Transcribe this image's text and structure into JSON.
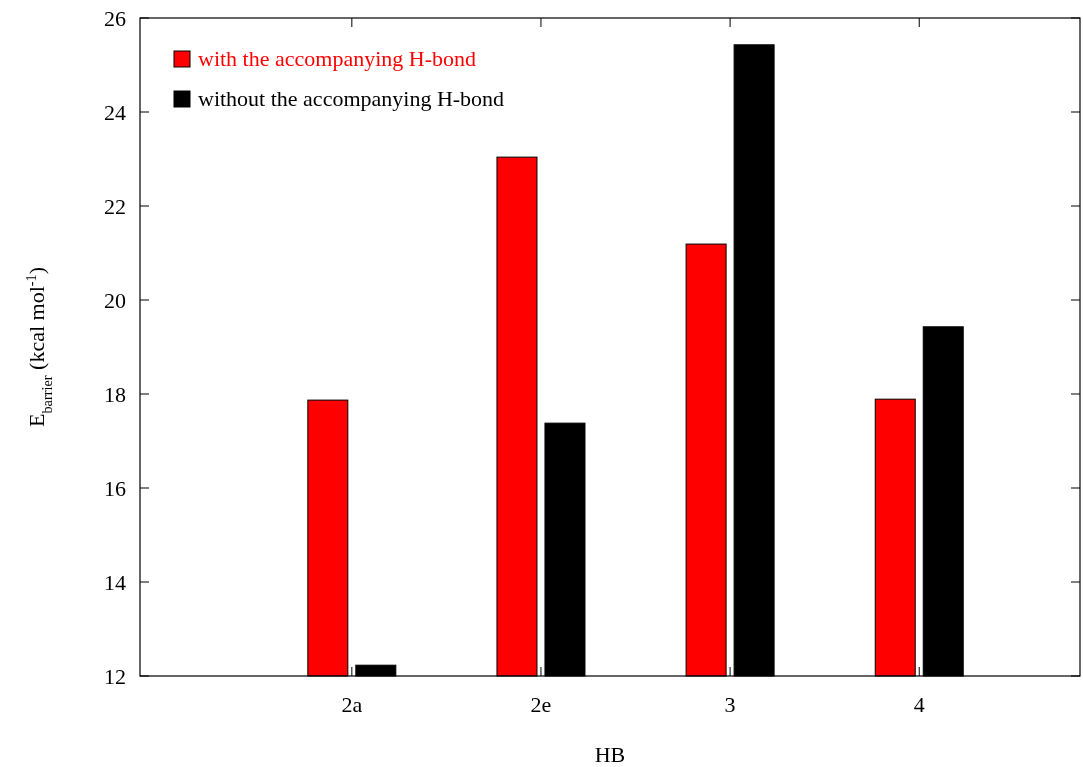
{
  "chart_data": {
    "type": "bar",
    "xlabel": "HB",
    "ylabel": "E$_{barrier}$ (kcal mol$^{-1}$)",
    "categories": [
      "2a",
      "2e",
      "3",
      "4"
    ],
    "series": [
      {
        "name": "with the accompanying H-bond",
        "color": "#ff0000",
        "values": [
          17.87,
          23.04,
          21.19,
          17.89
        ]
      },
      {
        "name": "without the accompanying H-bond",
        "color": "#000000",
        "values": [
          12.23,
          17.38,
          25.43,
          19.43
        ]
      }
    ],
    "ylim": [
      12,
      26
    ],
    "yticks": [
      12,
      14,
      16,
      18,
      20,
      22,
      24,
      26
    ],
    "grid": false,
    "legend": "top left"
  }
}
